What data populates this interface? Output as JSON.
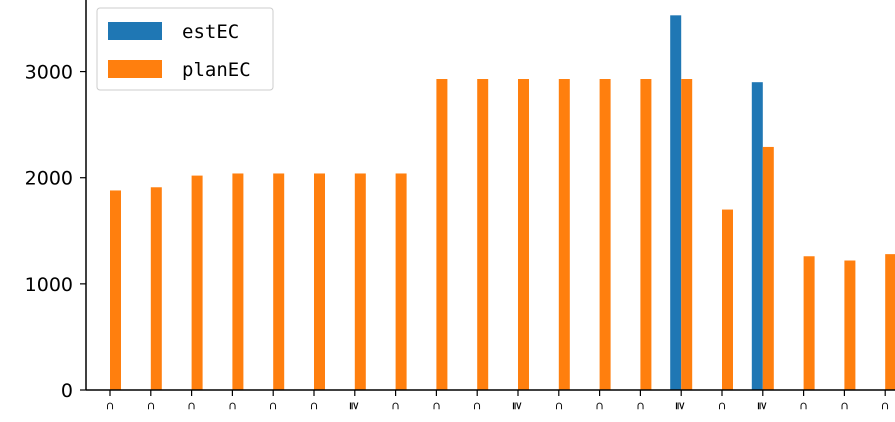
{
  "chart_data": {
    "type": "bar",
    "categories": [
      "⊂",
      "⊂",
      "⊂",
      "⊂",
      "⊂",
      "⊂",
      "≧",
      "⊂",
      "⊂",
      "⊂",
      "≧",
      "⊂",
      "⊂",
      "⊂",
      "≧",
      "⊂",
      "≧",
      "⊂",
      "⊂",
      "⊂"
    ],
    "series": [
      {
        "name": "estEC",
        "color": "#1f77b4",
        "values": [
          0,
          0,
          0,
          0,
          0,
          0,
          0,
          0,
          0,
          0,
          0,
          0,
          0,
          0,
          3530,
          0,
          2900,
          0,
          0,
          0
        ]
      },
      {
        "name": "planEC",
        "color": "#ff7f0e",
        "values": [
          1880,
          1910,
          2020,
          2040,
          2040,
          2040,
          2040,
          2040,
          2930,
          2930,
          2930,
          2930,
          2930,
          2930,
          2930,
          1700,
          2290,
          1260,
          1220,
          1280
        ]
      }
    ],
    "yticks": [
      0,
      1000,
      2000,
      3000
    ],
    "ylim": [
      0,
      3700
    ],
    "legend": "top-left",
    "grid": false,
    "title": "",
    "xlabel": "",
    "ylabel": ""
  }
}
